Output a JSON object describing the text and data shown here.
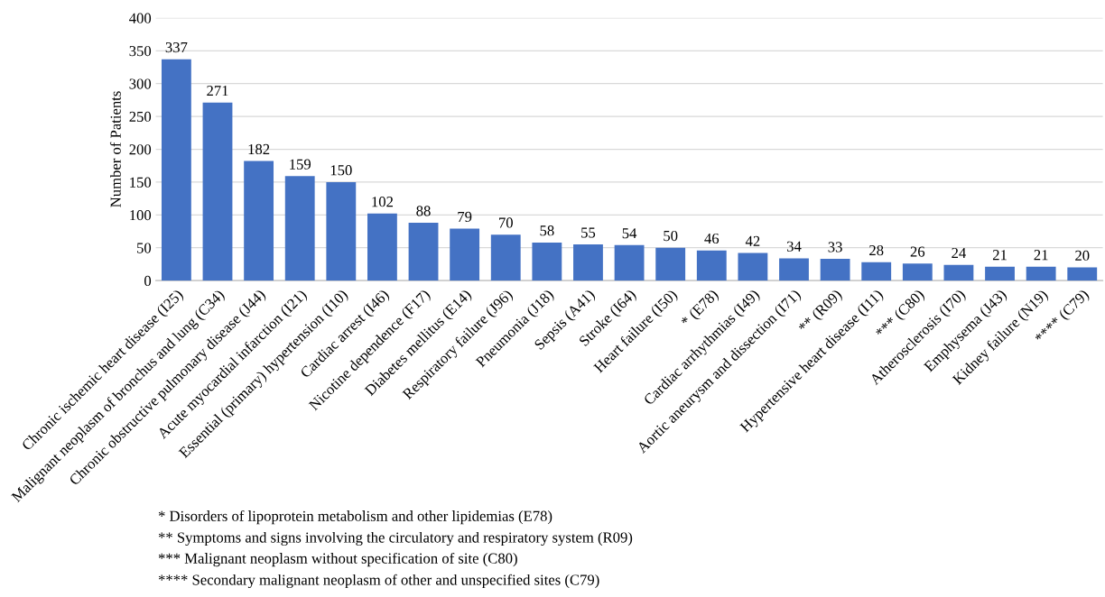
{
  "chart_data": {
    "type": "bar",
    "ylabel": "Number of Patients",
    "categories": [
      "Chronic ischemic heart disease (I25)",
      "Malignant neoplasm of bronchus and lung (C34)",
      "Chronic obstructive pulmonary disease (J44)",
      "Acute myocardial infarction (I21)",
      "Essential (primary) hypertension (I10)",
      "Cardiac arrest (I46)",
      "Nicotine dependence (F17)",
      "Diabetes mellitus (E14)",
      "Respiratory failure (J96)",
      "Pneumonia (J18)",
      "Sepsis (A41)",
      "Stroke (I64)",
      "Heart failure (I50)",
      "* (E78)",
      "Cardiac arrhythmias (I49)",
      "Aortic aneurysm and dissection (I71)",
      "** (R09)",
      "Hypertensive heart disease (I11)",
      "*** (C80)",
      "Atherosclerosis (I70)",
      "Emphysema (J43)",
      "Kidney failure (N19)",
      "**** (C79)"
    ],
    "values": [
      337,
      271,
      182,
      159,
      150,
      102,
      88,
      79,
      70,
      58,
      55,
      54,
      50,
      46,
      42,
      34,
      33,
      28,
      26,
      24,
      21,
      21,
      20
    ],
    "color": "#4472c4",
    "data_labels": true,
    "grid": "y",
    "ylim": [
      0,
      400
    ],
    "yticks": [
      0,
      50,
      100,
      150,
      200,
      250,
      300,
      350,
      400
    ],
    "annotations": [
      "* Disorders of lipoprotein metabolism and other lipidemias (E78)",
      "** Symptoms and signs involving the circulatory and respiratory system (R09)",
      "*** Malignant neoplasm without specification of site (C80)",
      "**** Secondary malignant neoplasm of other and unspecified sites (C79)"
    ]
  }
}
